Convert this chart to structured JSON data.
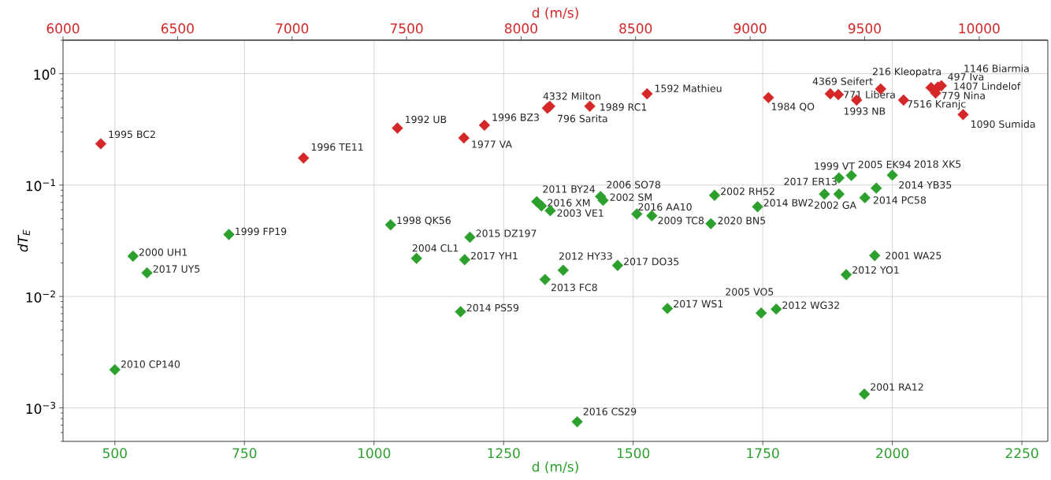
{
  "chart_data": {
    "type": "scatter",
    "xlabel": "d (m/s)",
    "x2label": "d (m/s)",
    "ylabel": "dT$_{E}$",
    "xlim": [
      400,
      2300
    ],
    "xticks": [
      500,
      750,
      1000,
      1250,
      1500,
      1750,
      2000,
      2250
    ],
    "x2lim": [
      6000,
      10300
    ],
    "x2ticks": [
      6000,
      6500,
      7000,
      7500,
      8000,
      8500,
      9000,
      9500,
      10000
    ],
    "ylim": [
      0.0005,
      2
    ],
    "yticks": [
      {
        "value": 0.001,
        "label": "10$^{−3}$"
      },
      {
        "value": 0.01,
        "label": "10$^{−2}$"
      },
      {
        "value": 0.1,
        "label": "10$^{−1}$"
      },
      {
        "value": 1,
        "label": "10$^{0}$"
      }
    ],
    "log": "y",
    "grid": true,
    "marker": "diamond",
    "series": [
      {
        "color": "#d62728",
        "axis": "x2",
        "x": [
          6165,
          7050,
          7460,
          7750,
          7840,
          8125,
          8115,
          8300,
          8550,
          9080,
          9350,
          9385,
          9465,
          9570,
          9670,
          9835,
          9820,
          9790,
          9810,
          9930
        ],
        "values": [
          0.235,
          0.175,
          0.325,
          0.265,
          0.345,
          0.51,
          0.49,
          0.51,
          0.66,
          0.61,
          0.66,
          0.65,
          0.58,
          0.73,
          0.58,
          0.78,
          0.76,
          0.75,
          0.67,
          0.43
        ]
      },
      {
        "color": "#2ca02c",
        "x": [
          500,
          535,
          562,
          720,
          1032,
          1082,
          1185,
          1175,
          1167,
          1314,
          1323,
          1340,
          1437,
          1442,
          1507,
          1536,
          1657,
          1650,
          1365,
          1330,
          1470,
          1392,
          1566,
          1747,
          1776,
          1911,
          1966,
          1946,
          1740,
          1869,
          1897,
          1921,
          1897,
          1947,
          1969,
          2000
        ],
        "values": [
          0.0022,
          0.023,
          0.0163,
          0.036,
          0.044,
          0.022,
          0.034,
          0.0214,
          0.0073,
          0.071,
          0.065,
          0.059,
          0.079,
          0.073,
          0.055,
          0.053,
          0.081,
          0.045,
          0.0172,
          0.0142,
          0.019,
          0.00075,
          0.0078,
          0.0071,
          0.0077,
          0.0157,
          0.0233,
          0.00133,
          0.064,
          0.083,
          0.116,
          0.122,
          0.083,
          0.077,
          0.094,
          0.123
        ]
      }
    ],
    "annotations": [
      "1995 BC2",
      "1996 TE11",
      "1992 UB",
      "1977 VA",
      "1996 BZ3",
      "4332 Milton",
      "796 Sarita",
      "1989 RC1",
      "1592 Mathieu",
      "1984 QO",
      "4369 Seifert",
      "771 Libera",
      "1993 NB",
      "216 Kleopatra",
      "7516 Kranjc",
      "1146 Biarmia",
      "497 Iva",
      "1407 Lindelof",
      "779 Nina",
      "1090 Sumida",
      {
        "text": "2010 CP140",
        "x": 500,
        "y": 0.0022
      },
      {
        "text": "2000 UH1",
        "x": 535,
        "y": 0.023
      },
      {
        "text": "2017 UY5",
        "x": 562,
        "y": 0.0163
      },
      {
        "text": "1999 FP19",
        "x": 720,
        "y": 0.036
      },
      {
        "text": "1998 QK56",
        "x": 1032,
        "y": 0.044
      },
      {
        "text": "2004 CL1",
        "x": 1082,
        "y": 0.022
      },
      {
        "text": "2015 DZ197",
        "x": 1185,
        "y": 0.034
      },
      {
        "text": "2017 YH1",
        "x": 1175,
        "y": 0.0214
      },
      {
        "text": "2014 PS59",
        "x": 1167,
        "y": 0.0073
      },
      {
        "text": "2011 BY24",
        "x": 1314,
        "y": 0.071
      },
      {
        "text": "2016 XM",
        "x": 1323,
        "y": 0.065
      },
      {
        "text": "2003 VE1",
        "x": 1340,
        "y": 0.059
      },
      {
        "text": "2006 SO78",
        "x": 1437,
        "y": 0.079
      },
      {
        "text": "2002 SM",
        "x": 1442,
        "y": 0.073
      },
      {
        "text": "2016 AA10",
        "x": 1507,
        "y": 0.055
      },
      {
        "text": "2009 TC8",
        "x": 1536,
        "y": 0.053
      },
      {
        "text": "2002 RH52",
        "x": 1657,
        "y": 0.081
      },
      {
        "text": "2020 BN5",
        "x": 1650,
        "y": 0.045
      },
      {
        "text": "2012 HY33",
        "x": 1365,
        "y": 0.0172
      },
      {
        "text": "2013 FC8",
        "x": 1330,
        "y": 0.0142
      },
      {
        "text": "2017 DO35",
        "x": 1470,
        "y": 0.019
      },
      {
        "text": "2016 CS29",
        "x": 1392,
        "y": 0.00075
      },
      {
        "text": "2017 WS1",
        "x": 1566,
        "y": 0.0078
      },
      {
        "text": "2005 VO5",
        "x": 1747,
        "y": 0.0071
      },
      {
        "text": "2012 WG32",
        "x": 1776,
        "y": 0.0077
      },
      {
        "text": "2012 YO1",
        "x": 1911,
        "y": 0.0157
      },
      {
        "text": "2001 WA25",
        "x": 1966,
        "y": 0.0233
      },
      {
        "text": "2001 RA12",
        "x": 1946,
        "y": 0.00133
      },
      {
        "text": "2014 BW2",
        "x": 1740,
        "y": 0.064
      },
      {
        "text": "2017 ER13",
        "x": 1869,
        "y": 0.083
      },
      {
        "text": "1999 VT",
        "x": 1897,
        "y": 0.116
      },
      {
        "text": "2005 EK94",
        "x": 1921,
        "y": 0.122
      },
      {
        "text": "2002 GA",
        "x": 1897,
        "y": 0.083
      },
      {
        "text": "2014 PC58",
        "x": 1947,
        "y": 0.077
      },
      {
        "text": "2014 YB35",
        "x": 1969,
        "y": 0.094
      },
      {
        "text": "2018 XK5",
        "x": 2000,
        "y": 0.123
      }
    ]
  }
}
